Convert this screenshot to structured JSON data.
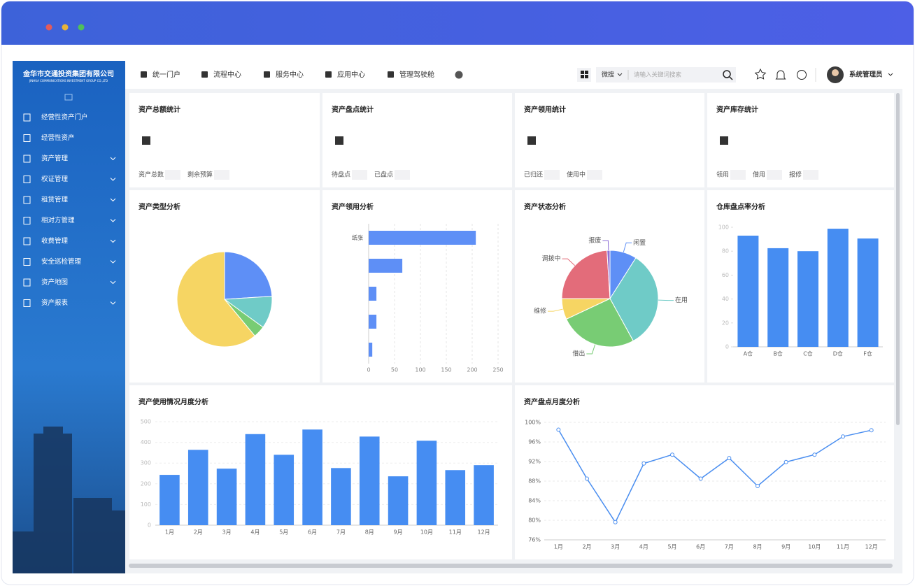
{
  "sidebar": {
    "logo_cn": "金华市交通投资集团有限公司",
    "logo_en": "JINHUA COMMUNICATIONS INVESTMENT GROUP CO.,LTD",
    "menu": [
      "经营性资产门户",
      "经营性资产",
      "资产管理",
      "权证管理",
      "租赁管理",
      "相对方管理",
      "收费管理",
      "安全巡检管理",
      "资产地图",
      "资产报表"
    ]
  },
  "nav": {
    "items": [
      "统一门户",
      "流程中心",
      "服务中心",
      "应用中心",
      "管理驾驶舱"
    ],
    "search_scope": "微搜",
    "search_placeholder": "请输入关键词搜索",
    "user": "系统管理员"
  },
  "stats": [
    {
      "title": "资产总额统计",
      "labels": [
        "资产总数",
        "剩余预算"
      ]
    },
    {
      "title": "资产盘点统计",
      "labels": [
        "待盘点",
        "已盘点"
      ]
    },
    {
      "title": "资产领用统计",
      "labels": [
        "已归还",
        "使用中"
      ]
    },
    {
      "title": "资产库存统计",
      "labels": [
        "领用",
        "借用",
        "报修"
      ]
    }
  ],
  "chart_data": [
    {
      "type": "pie",
      "title": "资产类型分析",
      "values": [
        24,
        11,
        4,
        61
      ],
      "colors": [
        "#5e8ff6",
        "#6fcbc7",
        "#78cc74",
        "#f6d563"
      ]
    },
    {
      "type": "hbar",
      "title": "资产领用分析",
      "categories": [
        "纸张",
        null,
        null,
        null,
        null
      ],
      "values": [
        207,
        65,
        15,
        15,
        7
      ],
      "color": "#5e8ff6",
      "xlim": [
        0,
        250
      ],
      "xticks": [
        0,
        50,
        100,
        150,
        200,
        250
      ],
      "grid": true
    },
    {
      "type": "pie",
      "title": "资产状态分析",
      "categories": [
        "闲置",
        "在用",
        "借出",
        "维修",
        "调拨中",
        "报废"
      ],
      "values": [
        9,
        33,
        26,
        7,
        24,
        1
      ],
      "colors": [
        "#5e8ff6",
        "#6fcbc7",
        "#78cc74",
        "#f6d563",
        "#e36c7a",
        "#8e6fd6"
      ]
    },
    {
      "type": "bar",
      "title": "仓库盘点率分析",
      "categories": [
        "A仓",
        "B仓",
        "C仓",
        "D仓",
        "F仓"
      ],
      "values": [
        93,
        82.5,
        80,
        98.8,
        90.6
      ],
      "color": "#468df2",
      "ylim": [
        0,
        100
      ],
      "yticks": [
        0,
        20,
        40,
        60,
        80,
        100
      ],
      "grid": false
    },
    {
      "type": "bar",
      "title": "资产使用情况月度分析",
      "categories": [
        "1月",
        "2月",
        "3月",
        "4月",
        "5月",
        "6月",
        "7月",
        "8月",
        "9月",
        "10月",
        "11月",
        "12月"
      ],
      "values": [
        243,
        364,
        273,
        440,
        340,
        462,
        276,
        428,
        236,
        408,
        266,
        290
      ],
      "color": "#468df2",
      "ylim": [
        0,
        500
      ],
      "yticks": [
        0,
        100,
        200,
        300,
        400,
        500
      ],
      "grid": true
    },
    {
      "type": "line",
      "title": "资产盘点月度分析",
      "categories": [
        "1月",
        "2月",
        "3月",
        "4月",
        "5月",
        "6月",
        "7月",
        "8月",
        "9月",
        "10月",
        "11月",
        "12月"
      ],
      "values": [
        98.5,
        88.5,
        79.6,
        91.6,
        93.4,
        88.5,
        92.7,
        87,
        91.9,
        93.4,
        97.1,
        98.4
      ],
      "color": "#4a8ef0",
      "ylim": [
        76,
        100
      ],
      "yticks": [
        {
          "value": 76,
          "label": "76%"
        },
        {
          "value": 80,
          "label": "80%"
        },
        {
          "value": 84,
          "label": "84%"
        },
        {
          "value": 88,
          "label": "88%"
        },
        {
          "value": 92,
          "label": "92%"
        },
        {
          "value": 96,
          "label": "96%"
        },
        {
          "value": 100,
          "label": "100%"
        }
      ],
      "grid": true
    }
  ]
}
